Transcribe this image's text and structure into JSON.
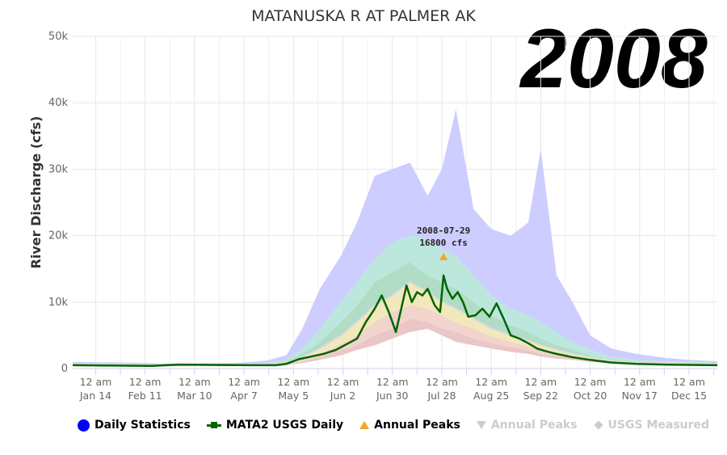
{
  "chart_data": {
    "type": "area",
    "title": "MATANUSKA R AT PALMER AK",
    "year_label": "2008",
    "ylabel": "River Discharge (cfs)",
    "xlabel": "",
    "ylim": [
      0,
      50000
    ],
    "xlim": [
      "2008-01-01",
      "2008-12-31"
    ],
    "y_ticks": [
      "0",
      "10k",
      "20k",
      "30k",
      "40k",
      "50k"
    ],
    "y_tick_values": [
      0,
      10000,
      20000,
      30000,
      40000,
      50000
    ],
    "x_ticks": [
      {
        "date": "2008-01-14",
        "line1": "12 am",
        "line2": "Jan 14"
      },
      {
        "date": "2008-02-11",
        "line1": "12 am",
        "line2": "Feb 11"
      },
      {
        "date": "2008-03-10",
        "line1": "12 am",
        "line2": "Mar 10"
      },
      {
        "date": "2008-04-07",
        "line1": "12 am",
        "line2": "Apr 7"
      },
      {
        "date": "2008-05-05",
        "line1": "12 am",
        "line2": "May 5"
      },
      {
        "date": "2008-06-02",
        "line1": "12 am",
        "line2": "Jun 2"
      },
      {
        "date": "2008-06-30",
        "line1": "12 am",
        "line2": "Jun 30"
      },
      {
        "date": "2008-07-28",
        "line1": "12 am",
        "line2": "Jul 28"
      },
      {
        "date": "2008-08-25",
        "line1": "12 am",
        "line2": "Aug 25"
      },
      {
        "date": "2008-09-22",
        "line1": "12 am",
        "line2": "Sep 22"
      },
      {
        "date": "2008-10-20",
        "line1": "12 am",
        "line2": "Oct 20"
      },
      {
        "date": "2008-11-17",
        "line1": "12 am",
        "line2": "Nov 17"
      },
      {
        "date": "2008-12-15",
        "line1": "12 am",
        "line2": "Dec 15"
      }
    ],
    "grid": true,
    "legend_position": "bottom",
    "statistics_bands": {
      "dates": [
        "2008-01-01",
        "2008-02-01",
        "2008-03-01",
        "2008-04-01",
        "2008-04-20",
        "2008-05-01",
        "2008-05-10",
        "2008-05-20",
        "2008-06-01",
        "2008-06-10",
        "2008-06-20",
        "2008-06-30",
        "2008-07-10",
        "2008-07-20",
        "2008-07-28",
        "2008-08-05",
        "2008-08-15",
        "2008-08-25",
        "2008-09-05",
        "2008-09-15",
        "2008-09-22",
        "2008-10-01",
        "2008-10-10",
        "2008-10-20",
        "2008-11-01",
        "2008-11-15",
        "2008-12-01",
        "2008-12-15",
        "2008-12-31"
      ],
      "max": [
        1000,
        900,
        700,
        800,
        1200,
        2000,
        6000,
        12000,
        17000,
        22000,
        29000,
        30000,
        31000,
        26000,
        30000,
        39000,
        24000,
        21000,
        20000,
        22000,
        33000,
        14000,
        10000,
        5000,
        3000,
        2200,
        1600,
        1300,
        1100
      ],
      "p90": [
        800,
        700,
        600,
        650,
        900,
        1300,
        3000,
        6000,
        10000,
        13000,
        16500,
        19000,
        20000,
        19500,
        18000,
        17000,
        14000,
        11000,
        9000,
        8000,
        7000,
        5500,
        4000,
        2800,
        1800,
        1300,
        1100,
        1000,
        900
      ],
      "p75": [
        700,
        600,
        550,
        600,
        800,
        1100,
        2200,
        4000,
        7000,
        9500,
        13000,
        14500,
        16000,
        14000,
        13000,
        12000,
        10000,
        8000,
        6500,
        5500,
        4500,
        3500,
        2800,
        2000,
        1400,
        1100,
        950,
        850,
        800
      ],
      "p50": [
        600,
        550,
        500,
        550,
        700,
        900,
        1700,
        3000,
        5000,
        7000,
        9500,
        11000,
        13000,
        11500,
        10000,
        9000,
        7500,
        6000,
        5000,
        4200,
        3500,
        2800,
        2200,
        1700,
        1200,
        950,
        850,
        750,
        700
      ],
      "p25": [
        500,
        450,
        450,
        450,
        600,
        750,
        1200,
        2200,
        3700,
        5000,
        7000,
        8500,
        9500,
        9000,
        8000,
        7000,
        6000,
        4800,
        4000,
        3300,
        2800,
        2300,
        1800,
        1400,
        1000,
        800,
        700,
        650,
        600
      ],
      "p10": [
        450,
        400,
        400,
        400,
        550,
        650,
        1000,
        1700,
        2700,
        3500,
        5000,
        6000,
        7500,
        7000,
        6000,
        5500,
        4500,
        3800,
        3200,
        2700,
        2200,
        1800,
        1500,
        1200,
        900,
        700,
        600,
        550,
        500
      ],
      "min": [
        400,
        350,
        350,
        350,
        500,
        550,
        800,
        1300,
        2000,
        2800,
        3500,
        4500,
        5500,
        6000,
        5000,
        4000,
        3500,
        3000,
        2500,
        2200,
        1800,
        1500,
        1300,
        1000,
        750,
        600,
        550,
        500,
        450
      ]
    },
    "series": [
      {
        "name": "MATA2 USGS Daily",
        "color": "#006400",
        "dates": [
          "2008-01-01",
          "2008-01-20",
          "2008-02-15",
          "2008-03-01",
          "2008-03-20",
          "2008-04-10",
          "2008-04-25",
          "2008-05-01",
          "2008-05-08",
          "2008-05-15",
          "2008-05-22",
          "2008-05-29",
          "2008-06-05",
          "2008-06-10",
          "2008-06-15",
          "2008-06-20",
          "2008-06-24",
          "2008-06-28",
          "2008-07-02",
          "2008-07-05",
          "2008-07-08",
          "2008-07-11",
          "2008-07-14",
          "2008-07-17",
          "2008-07-20",
          "2008-07-24",
          "2008-07-27",
          "2008-07-29",
          "2008-07-31",
          "2008-08-03",
          "2008-08-06",
          "2008-08-09",
          "2008-08-12",
          "2008-08-16",
          "2008-08-20",
          "2008-08-24",
          "2008-08-28",
          "2008-09-01",
          "2008-09-05",
          "2008-09-10",
          "2008-09-15",
          "2008-09-20",
          "2008-09-25",
          "2008-10-01",
          "2008-10-10",
          "2008-10-20",
          "2008-11-01",
          "2008-11-15",
          "2008-12-01",
          "2008-12-15",
          "2008-12-31"
        ],
        "values": [
          500,
          450,
          400,
          600,
          550,
          500,
          500,
          700,
          1400,
          1800,
          2200,
          2800,
          3800,
          4500,
          7000,
          9000,
          11000,
          8500,
          5500,
          9000,
          12500,
          10000,
          11500,
          11000,
          12000,
          9500,
          8500,
          14000,
          12000,
          10500,
          11500,
          10000,
          7800,
          8000,
          9000,
          7800,
          9800,
          7500,
          5000,
          4500,
          3800,
          3000,
          2600,
          2200,
          1700,
          1300,
          900,
          700,
          600,
          550,
          500
        ]
      }
    ],
    "annual_peak": {
      "date": "2008-07-29",
      "value": 16800,
      "label_date": "2008-07-29",
      "label_value": "16800 cfs"
    },
    "legend": [
      {
        "name": "Daily Statistics",
        "symbol": "dot",
        "enabled": true
      },
      {
        "name": "MATA2 USGS Daily",
        "symbol": "line",
        "enabled": true
      },
      {
        "name": "Annual Peaks",
        "symbol": "triangle",
        "enabled": true
      },
      {
        "name": "Annual Peaks",
        "symbol": "triangle-down",
        "enabled": false
      },
      {
        "name": "USGS Measured",
        "symbol": "diamond",
        "enabled": false
      }
    ],
    "colors": {
      "max_band": "#c8c8ff",
      "p90_band": "#b4e4d9",
      "p75_band": "#a8d8c0",
      "p50_band": "#f2e5b4",
      "p25_band": "#f0cfc7",
      "min_band": "#e8c0c0",
      "peak_marker": "#f5a623",
      "grid": "#e6e6e6"
    }
  }
}
